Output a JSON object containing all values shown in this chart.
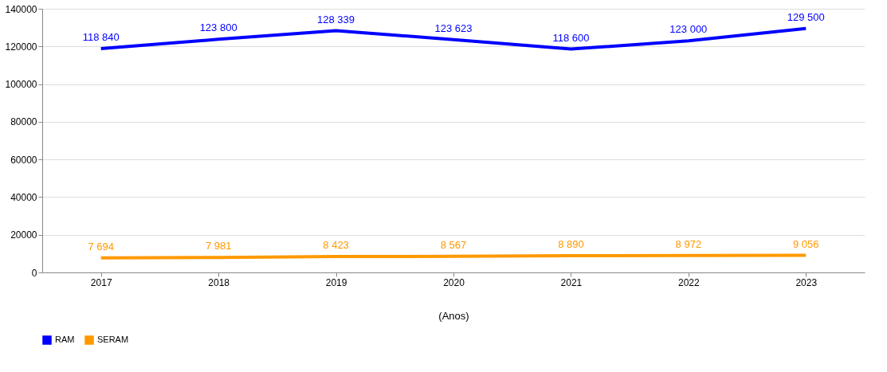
{
  "chart_data": {
    "type": "line",
    "xlabel": "(Anos)",
    "categories": [
      "2017",
      "2018",
      "2019",
      "2020",
      "2021",
      "2022",
      "2023"
    ],
    "series": [
      {
        "name": "RAM",
        "color": "#0000ff",
        "values": [
          118840,
          123800,
          128339,
          123623,
          118600,
          123000,
          129500
        ],
        "value_labels": [
          "118 840",
          "123 800",
          "128 339",
          "123 623",
          "118 600",
          "123 000",
          "129 500"
        ]
      },
      {
        "name": "SERAM",
        "color": "#ff9900",
        "values": [
          7694,
          7981,
          8423,
          8567,
          8890,
          8972,
          9056
        ],
        "value_labels": [
          "7 694",
          "7 981",
          "8 423",
          "8 567",
          "8 890",
          "8 972",
          "9 056"
        ]
      }
    ],
    "ylim": [
      0,
      140000
    ],
    "yticks": [
      0,
      20000,
      40000,
      60000,
      80000,
      100000,
      120000,
      140000
    ],
    "grid": "y",
    "legend": "bottom",
    "marker": "none",
    "line_style": "solid"
  }
}
